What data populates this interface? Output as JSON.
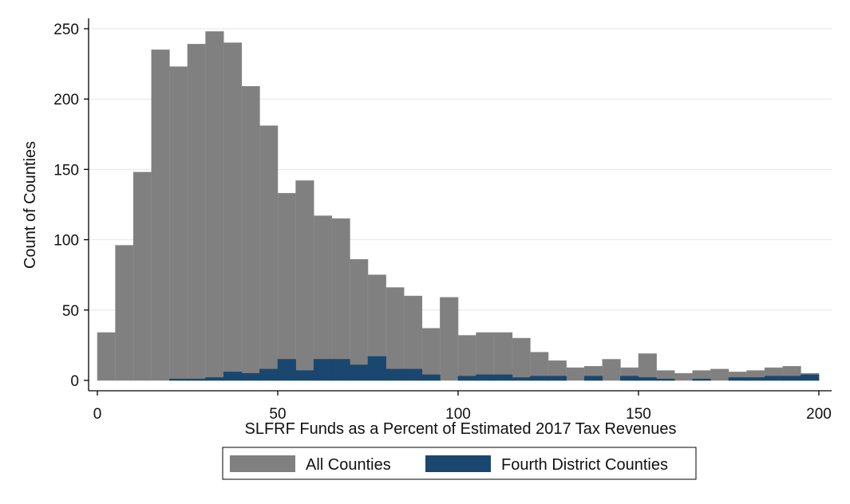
{
  "chart_data": {
    "type": "bar",
    "subtype": "histogram",
    "xlabel": "SLFRF Funds as a Percent of Estimated 2017 Tax Revenues",
    "ylabel": "Count of Counties",
    "xlim": [
      0,
      200
    ],
    "ylim": [
      0,
      250
    ],
    "xticks": [
      "0",
      "50",
      "100",
      "150",
      "200"
    ],
    "yticks": [
      "0",
      "50",
      "100",
      "150",
      "200",
      "250"
    ],
    "bin_width": 5,
    "grid": true,
    "legend_position": "bottom",
    "colors": {
      "All Counties": "#808080",
      "Fourth District Counties": "#1a476f"
    },
    "series": [
      {
        "name": "All Counties",
        "bin_starts": [
          0,
          5,
          10,
          15,
          20,
          25,
          30,
          35,
          40,
          45,
          50,
          55,
          60,
          65,
          70,
          75,
          80,
          85,
          90,
          95,
          100,
          105,
          110,
          115,
          120,
          125,
          130,
          135,
          140,
          145,
          150,
          155,
          160,
          165,
          170,
          175,
          180,
          185,
          190,
          195
        ],
        "values": [
          34,
          96,
          148,
          235,
          223,
          239,
          248,
          240,
          209,
          181,
          133,
          142,
          117,
          115,
          86,
          75,
          66,
          60,
          37,
          59,
          32,
          34,
          34,
          30,
          20,
          14,
          9,
          10,
          15,
          9,
          19,
          7,
          5,
          7,
          8,
          6,
          7,
          9,
          10,
          5
        ]
      },
      {
        "name": "Fourth District Counties",
        "bin_starts": [
          20,
          25,
          30,
          35,
          40,
          45,
          50,
          55,
          60,
          65,
          70,
          75,
          80,
          85,
          90,
          95,
          100,
          105,
          110,
          115,
          120,
          125,
          130,
          135,
          140,
          145,
          150,
          155,
          160,
          165,
          170,
          175,
          180,
          185,
          190,
          195
        ],
        "values": [
          1,
          1,
          2,
          6,
          5,
          8,
          15,
          7,
          15,
          15,
          11,
          17,
          8,
          8,
          4,
          0,
          3,
          4,
          4,
          2,
          3,
          3,
          0,
          3,
          0,
          3,
          2,
          1,
          0,
          1,
          0,
          2,
          2,
          3,
          3,
          4
        ]
      }
    ]
  }
}
